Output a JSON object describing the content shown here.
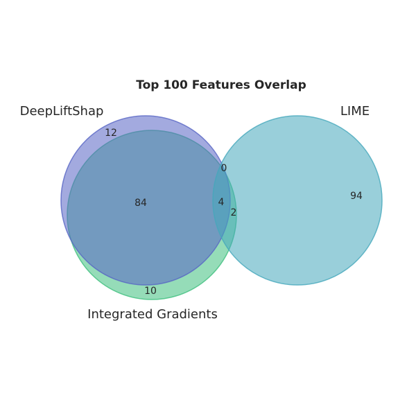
{
  "chart_data": {
    "type": "venn",
    "title": "Top 100 Features Overlap",
    "sets": [
      {
        "name": "DeepLiftShap",
        "size": 100,
        "color": "#5865c4"
      },
      {
        "name": "Integrated Gradients",
        "size": 100,
        "color": "#3ebf7e"
      },
      {
        "name": "LIME",
        "size": 100,
        "color": "#45a7bb"
      }
    ],
    "regions": {
      "deepliftshap_only": "12",
      "integrated_gradients_only": "10",
      "lime_only": "94",
      "deepliftshap_and_integrated_gradients": "84",
      "deepliftshap_and_lime": "0",
      "integrated_gradients_and_lime": "2",
      "all_three": "4"
    }
  }
}
